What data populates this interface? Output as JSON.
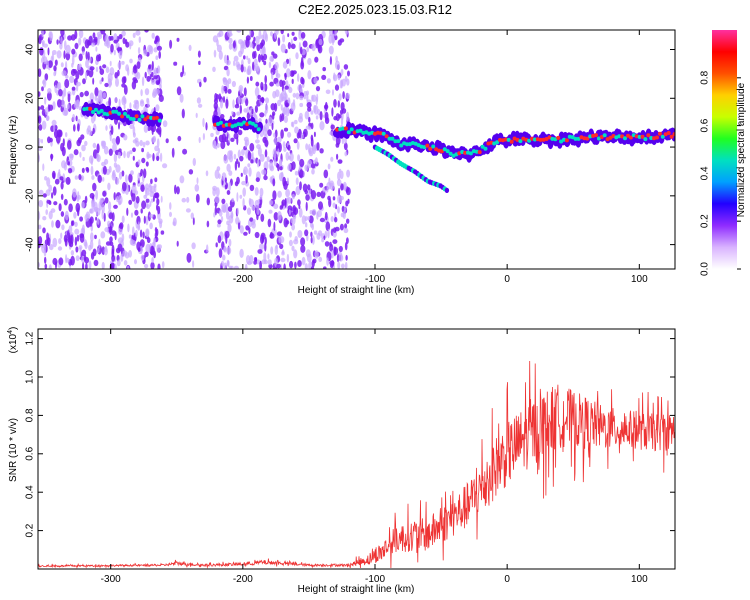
{
  "title": "C2E2.2025.023.15.03.R12",
  "colors": {
    "snr_line": "#ee3333",
    "ridge_core": "#ff2a2a",
    "ridge_mid": "#00e0c0",
    "ridge_low": "#5500ee",
    "scatter": "#7a1cf0",
    "scatter_light": "#c9a8ff"
  },
  "chart_data": [
    {
      "type": "heatmap",
      "xlabel": "Height of straight line (km)",
      "ylabel": "Frequency (Hz)",
      "xlim": [
        -355,
        127
      ],
      "ylim": [
        -50,
        48
      ],
      "xticks": [
        -300,
        -200,
        -100,
        0,
        100
      ],
      "yticks": [
        -40,
        -20,
        0,
        20,
        40
      ],
      "colorbar": {
        "label": "Normalized spectral amplitude",
        "range": [
          0,
          1
        ],
        "ticks": [
          "0.0",
          "0.2",
          "0.4",
          "0.6",
          "0.8"
        ],
        "tick_values": [
          0,
          0.2,
          0.4,
          0.6,
          0.8
        ],
        "colormap": [
          "#ffffff",
          "#d9b3ff",
          "#8f2cff",
          "#2200ff",
          "#00a0ff",
          "#00e0c0",
          "#20ff20",
          "#c8ff00",
          "#ffd000",
          "#ff5000",
          "#ff0000",
          "#ff30a0"
        ]
      },
      "ridge": {
        "x": [
          -320,
          -300,
          -280,
          -260,
          -245,
          -225,
          -205,
          -195,
          -185,
          -125,
          -110,
          -95,
          -80,
          -65,
          -50,
          -40,
          -30,
          -20,
          -10,
          0,
          20,
          40,
          60,
          80,
          100,
          127
        ],
        "y": [
          16,
          14,
          12,
          11,
          9,
          10,
          9,
          10,
          6,
          7,
          6,
          5,
          1,
          1,
          -1,
          -3,
          -3,
          -1,
          2,
          3,
          3,
          3,
          4,
          4,
          4,
          5
        ]
      },
      "branch": {
        "x": [
          -100,
          -90,
          -80,
          -70,
          -60,
          -50,
          -45
        ],
        "y": [
          0,
          -3,
          -7,
          -10,
          -14,
          -16,
          -18
        ]
      },
      "scatter_regions": [
        {
          "x": [
            -355,
            -262
          ]
        },
        {
          "x": [
            -262,
            -222
          ],
          "sparse": true
        },
        {
          "x": [
            -222,
            -187
          ]
        },
        {
          "x": [
            -187,
            -120
          ]
        }
      ]
    },
    {
      "type": "line",
      "xlabel": "Height of straight line (km)",
      "ylabel": "SNR (10 * v/v)",
      "yunit": "(x10",
      "yunit_exp": "4",
      "yunit_close": ")",
      "xlim": [
        -355,
        127
      ],
      "ylim": [
        0,
        1.25
      ],
      "xticks": [
        -300,
        -200,
        -100,
        0,
        100
      ],
      "yticks": [
        0.2,
        0.4,
        0.6,
        0.8,
        1.0,
        1.2
      ],
      "ytick_labels": [
        "0.2",
        "0.4",
        "0.6",
        "0.8",
        "1.0",
        "1.2"
      ],
      "series": [
        {
          "envelope_x": [
            -355,
            -300,
            -260,
            -250,
            -230,
            -200,
            -185,
            -170,
            -150,
            -120,
            -105,
            -95,
            -85,
            -75,
            -60,
            -45,
            -30,
            -20,
            -10,
            0,
            10,
            20,
            30,
            40,
            50,
            60,
            70,
            80,
            90,
            100,
            110,
            127
          ],
          "envelope_y": [
            0.015,
            0.018,
            0.02,
            0.03,
            0.02,
            0.025,
            0.035,
            0.03,
            0.02,
            0.02,
            0.05,
            0.09,
            0.15,
            0.17,
            0.18,
            0.25,
            0.33,
            0.42,
            0.52,
            0.6,
            0.66,
            0.72,
            0.76,
            0.8,
            0.78,
            0.76,
            0.74,
            0.73,
            0.73,
            0.72,
            0.71,
            0.72
          ],
          "noise_y": [
            0.004,
            0.004,
            0.005,
            0.01,
            0.006,
            0.008,
            0.012,
            0.008,
            0.006,
            0.006,
            0.03,
            0.05,
            0.07,
            0.08,
            0.09,
            0.1,
            0.12,
            0.14,
            0.16,
            0.17,
            0.17,
            0.18,
            0.18,
            0.17,
            0.15,
            0.14,
            0.12,
            0.11,
            0.1,
            0.1,
            0.1,
            0.1
          ]
        }
      ]
    }
  ]
}
